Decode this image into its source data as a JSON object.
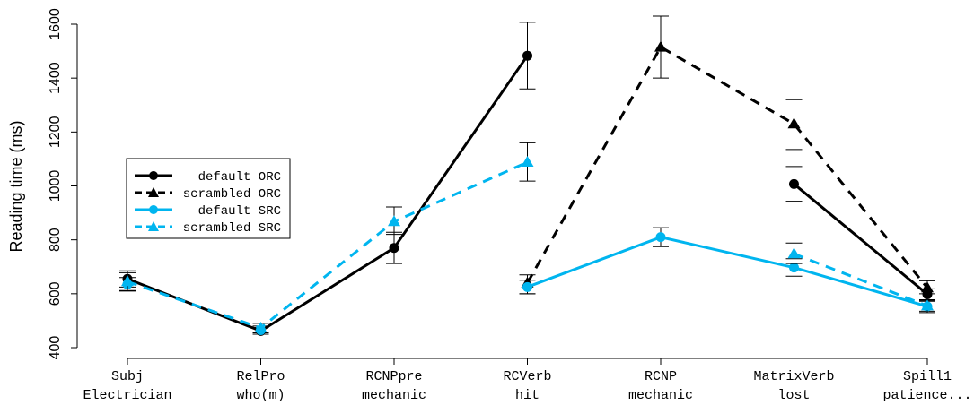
{
  "chart_data": {
    "type": "line",
    "ylabel": "Reading time (ms)",
    "xlabel": "",
    "ylim": [
      400,
      1650
    ],
    "yticks": [
      400,
      600,
      800,
      1000,
      1200,
      1400,
      1600
    ],
    "categories": [
      "Subj",
      "RelPro",
      "RCNPpre",
      "RCVerb",
      "RCNP",
      "MatrixVerb",
      "Spill1"
    ],
    "categories_line2": [
      "Electrician",
      "who(m)",
      "mechanic",
      "hit",
      "mechanic",
      "lost",
      "patience..."
    ],
    "legend_position": "left",
    "series": [
      {
        "name": "default ORC",
        "color": "#000000",
        "dash": "solid",
        "marker": "circle",
        "segments": [
          [
            0,
            1,
            2,
            3
          ],
          [
            5,
            6
          ]
        ],
        "values": [
          655,
          462,
          770,
          1483,
          null,
          1007,
          598
        ],
        "err_low": [
          625,
          450,
          712,
          1360,
          null,
          943,
          578
        ],
        "err_high": [
          685,
          475,
          828,
          1607,
          null,
          1072,
          618
        ]
      },
      {
        "name": "scrambled ORC",
        "color": "#000000",
        "dash": "dashed",
        "marker": "triangle",
        "segments": [
          [
            3,
            4,
            5,
            6
          ]
        ],
        "values": [
          null,
          null,
          null,
          640,
          1515,
          1230,
          622
        ],
        "err_low": [
          null,
          null,
          null,
          600,
          1400,
          1135,
          600
        ],
        "err_high": [
          null,
          null,
          null,
          670,
          1630,
          1320,
          648
        ]
      },
      {
        "name": "default SRC",
        "color": "#00b5ef",
        "dash": "solid",
        "marker": "circle",
        "segments": [
          [
            3,
            4,
            5,
            6
          ]
        ],
        "values": [
          635,
          465,
          null,
          625,
          810,
          697,
          553
        ],
        "err_low": [
          610,
          455,
          null,
          600,
          775,
          665,
          535
        ],
        "err_high": [
          660,
          480,
          null,
          650,
          845,
          730,
          572
        ]
      },
      {
        "name": "scrambled SRC",
        "color": "#00b5ef",
        "dash": "dashed",
        "marker": "triangle",
        "segments": [
          [
            0,
            1,
            2,
            3
          ],
          [
            5,
            6
          ]
        ],
        "values": [
          645,
          473,
          868,
          1088,
          null,
          748,
          555
        ],
        "err_low": [
          612,
          458,
          820,
          1018,
          null,
          712,
          530
        ],
        "err_high": [
          678,
          490,
          922,
          1160,
          null,
          788,
          575
        ]
      }
    ]
  }
}
